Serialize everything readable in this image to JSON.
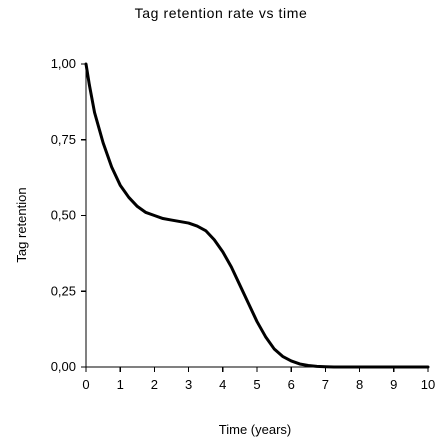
{
  "chart_data": {
    "type": "line",
    "title": "Tag retention rate vs time",
    "xlabel": "Time (years)",
    "ylabel": "Tag retention",
    "xlim": [
      0,
      10
    ],
    "ylim": [
      0,
      1
    ],
    "x_ticks": [
      0,
      1,
      2,
      3,
      4,
      5,
      6,
      7,
      8,
      9,
      10
    ],
    "x_tick_labels": [
      "0",
      "1",
      "2",
      "3",
      "4",
      "5",
      "6",
      "7",
      "8",
      "9",
      "10"
    ],
    "y_ticks": [
      0,
      0.25,
      0.5,
      0.75,
      1
    ],
    "y_tick_labels": [
      "0,00",
      "0,25",
      "0,50",
      "0,75",
      "1,00"
    ],
    "grid": false,
    "line_color": "#000000",
    "series": [
      {
        "x": [
          0,
          0.1,
          0.25,
          0.5,
          0.75,
          1,
          1.25,
          1.5,
          1.75,
          2,
          2.25,
          2.5,
          2.75,
          3,
          3.25,
          3.5,
          3.75,
          4,
          4.25,
          4.5,
          4.75,
          5,
          5.25,
          5.5,
          5.75,
          6,
          6.25,
          6.5,
          6.75,
          7,
          7.25,
          7.5,
          8,
          8.5,
          9,
          10
        ],
        "y": [
          1.0,
          0.93,
          0.84,
          0.74,
          0.66,
          0.6,
          0.56,
          0.53,
          0.51,
          0.5,
          0.49,
          0.485,
          0.48,
          0.475,
          0.465,
          0.45,
          0.42,
          0.38,
          0.33,
          0.27,
          0.21,
          0.15,
          0.1,
          0.06,
          0.035,
          0.02,
          0.01,
          0.005,
          0.002,
          0.001,
          0,
          0,
          0,
          0,
          0,
          0
        ]
      }
    ]
  }
}
